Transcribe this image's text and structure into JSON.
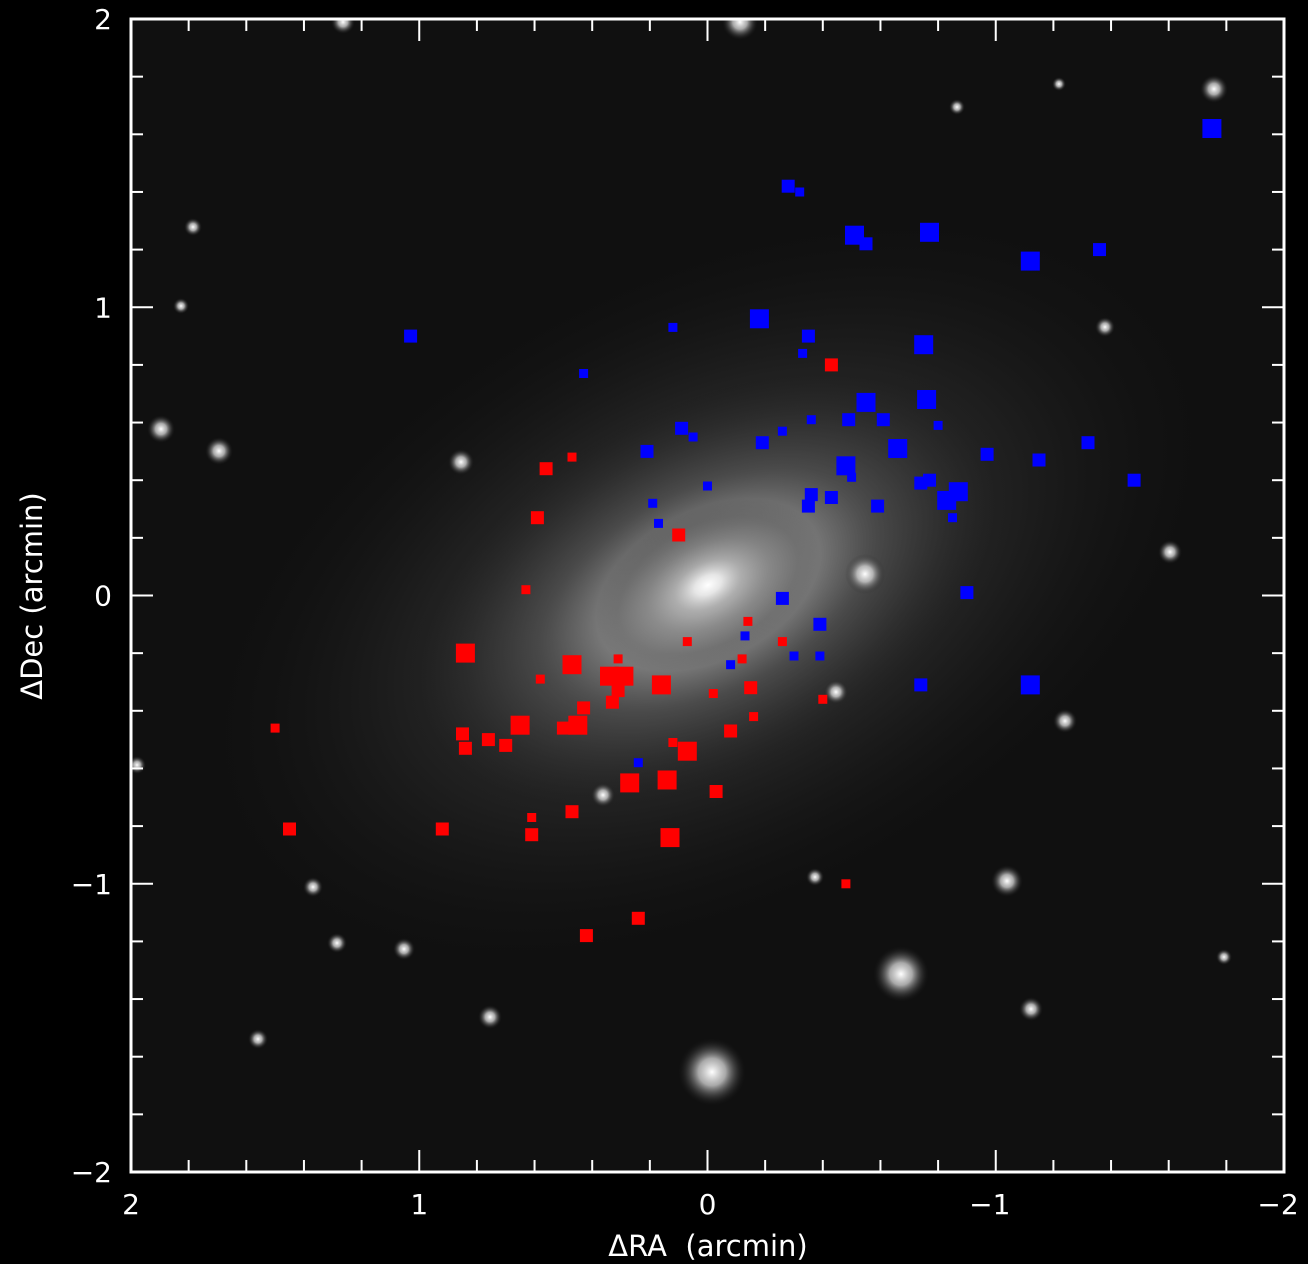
{
  "chart_data": {
    "type": "scatter",
    "title": "",
    "xlabel": "ΔRA  (arcmin)",
    "ylabel": "ΔDec (arcmin)",
    "xlim": [
      2,
      -2
    ],
    "ylim": [
      -2,
      2
    ],
    "x_reversed": true,
    "x_ticks": [
      2,
      1,
      0,
      -1,
      -2
    ],
    "x_tick_labels": [
      "2",
      "1",
      "0",
      "−1",
      "−2"
    ],
    "y_ticks": [
      -2,
      -1,
      0,
      1,
      2
    ],
    "y_tick_labels": [
      "−2",
      "−1",
      "0",
      "1",
      "2"
    ],
    "background": "greyscale sky image of an elliptical galaxy with field stars",
    "grid": false,
    "legend": "none",
    "colors": {
      "red_series": "#ff0000",
      "blue_series": "#0000ff",
      "axes": "#ffffff",
      "background": "#000000"
    },
    "point_size_note": "marker size varies per point (small / medium / large)",
    "series": [
      {
        "color": "#ff0000",
        "points": [
          {
            "x": -0.43,
            "y": 0.8,
            "s": "m"
          },
          {
            "x": 0.56,
            "y": 0.44,
            "s": "m"
          },
          {
            "x": 0.47,
            "y": 0.48,
            "s": "s"
          },
          {
            "x": 0.59,
            "y": 0.27,
            "s": "m"
          },
          {
            "x": 0.1,
            "y": 0.21,
            "s": "m"
          },
          {
            "x": 0.63,
            "y": 0.02,
            "s": "s"
          },
          {
            "x": -0.14,
            "y": -0.09,
            "s": "s"
          },
          {
            "x": 0.07,
            "y": -0.16,
            "s": "s"
          },
          {
            "x": -0.26,
            "y": -0.16,
            "s": "s"
          },
          {
            "x": 0.84,
            "y": -0.2,
            "s": "l"
          },
          {
            "x": 0.47,
            "y": -0.24,
            "s": "l"
          },
          {
            "x": 0.31,
            "y": -0.22,
            "s": "s"
          },
          {
            "x": -0.12,
            "y": -0.22,
            "s": "s"
          },
          {
            "x": 0.34,
            "y": -0.28,
            "s": "l"
          },
          {
            "x": 0.29,
            "y": -0.28,
            "s": "l"
          },
          {
            "x": 0.58,
            "y": -0.29,
            "s": "s"
          },
          {
            "x": 0.16,
            "y": -0.31,
            "s": "l"
          },
          {
            "x": 0.31,
            "y": -0.33,
            "s": "m"
          },
          {
            "x": -0.15,
            "y": -0.32,
            "s": "m"
          },
          {
            "x": -0.02,
            "y": -0.34,
            "s": "s"
          },
          {
            "x": 0.33,
            "y": -0.37,
            "s": "m"
          },
          {
            "x": -0.4,
            "y": -0.36,
            "s": "s"
          },
          {
            "x": 0.43,
            "y": -0.39,
            "s": "m"
          },
          {
            "x": -0.16,
            "y": -0.42,
            "s": "s"
          },
          {
            "x": 0.65,
            "y": -0.45,
            "s": "l"
          },
          {
            "x": 0.45,
            "y": -0.45,
            "s": "l"
          },
          {
            "x": 0.5,
            "y": -0.46,
            "s": "m"
          },
          {
            "x": -0.08,
            "y": -0.47,
            "s": "m"
          },
          {
            "x": 0.85,
            "y": -0.48,
            "s": "m"
          },
          {
            "x": 1.5,
            "y": -0.46,
            "s": "s"
          },
          {
            "x": 0.76,
            "y": -0.5,
            "s": "m"
          },
          {
            "x": 0.7,
            "y": -0.52,
            "s": "m"
          },
          {
            "x": 0.84,
            "y": -0.53,
            "s": "m"
          },
          {
            "x": 0.12,
            "y": -0.51,
            "s": "s"
          },
          {
            "x": 0.07,
            "y": -0.54,
            "s": "l"
          },
          {
            "x": 0.27,
            "y": -0.65,
            "s": "l"
          },
          {
            "x": 0.14,
            "y": -0.64,
            "s": "l"
          },
          {
            "x": -0.03,
            "y": -0.68,
            "s": "m"
          },
          {
            "x": 0.47,
            "y": -0.75,
            "s": "m"
          },
          {
            "x": 0.61,
            "y": -0.77,
            "s": "s"
          },
          {
            "x": 1.45,
            "y": -0.81,
            "s": "m"
          },
          {
            "x": 0.92,
            "y": -0.81,
            "s": "m"
          },
          {
            "x": 0.61,
            "y": -0.83,
            "s": "m"
          },
          {
            "x": 0.13,
            "y": -0.84,
            "s": "l"
          },
          {
            "x": -0.48,
            "y": -1.0,
            "s": "s"
          },
          {
            "x": 0.24,
            "y": -1.12,
            "s": "m"
          },
          {
            "x": 0.42,
            "y": -1.18,
            "s": "m"
          }
        ]
      },
      {
        "color": "#0000ff",
        "points": [
          {
            "x": -1.75,
            "y": 1.62,
            "s": "l"
          },
          {
            "x": -0.28,
            "y": 1.42,
            "s": "m"
          },
          {
            "x": -0.32,
            "y": 1.4,
            "s": "s"
          },
          {
            "x": -0.51,
            "y": 1.25,
            "s": "l"
          },
          {
            "x": -0.55,
            "y": 1.22,
            "s": "m"
          },
          {
            "x": -0.77,
            "y": 1.26,
            "s": "l"
          },
          {
            "x": -1.12,
            "y": 1.16,
            "s": "l"
          },
          {
            "x": -1.36,
            "y": 1.2,
            "s": "m"
          },
          {
            "x": -0.18,
            "y": 0.96,
            "s": "l"
          },
          {
            "x": 0.12,
            "y": 0.93,
            "s": "s"
          },
          {
            "x": -0.35,
            "y": 0.9,
            "s": "m"
          },
          {
            "x": -0.33,
            "y": 0.84,
            "s": "s"
          },
          {
            "x": -0.75,
            "y": 0.87,
            "s": "l"
          },
          {
            "x": 1.03,
            "y": 0.9,
            "s": "m"
          },
          {
            "x": 0.43,
            "y": 0.77,
            "s": "s"
          },
          {
            "x": -0.55,
            "y": 0.67,
            "s": "l"
          },
          {
            "x": -0.76,
            "y": 0.68,
            "s": "l"
          },
          {
            "x": -0.36,
            "y": 0.61,
            "s": "s"
          },
          {
            "x": -0.49,
            "y": 0.61,
            "s": "m"
          },
          {
            "x": -0.61,
            "y": 0.61,
            "s": "m"
          },
          {
            "x": -0.8,
            "y": 0.59,
            "s": "s"
          },
          {
            "x": 0.09,
            "y": 0.58,
            "s": "m"
          },
          {
            "x": 0.05,
            "y": 0.55,
            "s": "s"
          },
          {
            "x": -0.26,
            "y": 0.57,
            "s": "s"
          },
          {
            "x": -0.19,
            "y": 0.53,
            "s": "m"
          },
          {
            "x": 0.21,
            "y": 0.5,
            "s": "m"
          },
          {
            "x": -0.66,
            "y": 0.51,
            "s": "l"
          },
          {
            "x": -0.97,
            "y": 0.49,
            "s": "m"
          },
          {
            "x": -1.32,
            "y": 0.53,
            "s": "m"
          },
          {
            "x": -1.15,
            "y": 0.47,
            "s": "m"
          },
          {
            "x": -0.48,
            "y": 0.45,
            "s": "l"
          },
          {
            "x": -0.5,
            "y": 0.41,
            "s": "s"
          },
          {
            "x": -1.48,
            "y": 0.4,
            "s": "m"
          },
          {
            "x": 0.0,
            "y": 0.38,
            "s": "s"
          },
          {
            "x": -0.74,
            "y": 0.39,
            "s": "m"
          },
          {
            "x": -0.77,
            "y": 0.4,
            "s": "m"
          },
          {
            "x": -0.87,
            "y": 0.36,
            "s": "l"
          },
          {
            "x": -0.83,
            "y": 0.33,
            "s": "l"
          },
          {
            "x": -0.36,
            "y": 0.35,
            "s": "m"
          },
          {
            "x": -0.43,
            "y": 0.34,
            "s": "m"
          },
          {
            "x": 0.19,
            "y": 0.32,
            "s": "s"
          },
          {
            "x": -0.35,
            "y": 0.31,
            "s": "m"
          },
          {
            "x": -0.59,
            "y": 0.31,
            "s": "m"
          },
          {
            "x": -0.85,
            "y": 0.27,
            "s": "s"
          },
          {
            "x": 0.17,
            "y": 0.25,
            "s": "s"
          },
          {
            "x": -0.9,
            "y": 0.01,
            "s": "m"
          },
          {
            "x": -0.26,
            "y": -0.01,
            "s": "m"
          },
          {
            "x": -0.39,
            "y": -0.1,
            "s": "m"
          },
          {
            "x": -0.13,
            "y": -0.14,
            "s": "s"
          },
          {
            "x": -0.3,
            "y": -0.21,
            "s": "s"
          },
          {
            "x": -0.39,
            "y": -0.21,
            "s": "s"
          },
          {
            "x": -0.08,
            "y": -0.24,
            "s": "s"
          },
          {
            "x": -0.74,
            "y": -0.31,
            "s": "m"
          },
          {
            "x": -1.12,
            "y": -0.31,
            "s": "l"
          },
          {
            "x": 0.24,
            "y": -0.58,
            "s": "s"
          }
        ]
      }
    ]
  }
}
